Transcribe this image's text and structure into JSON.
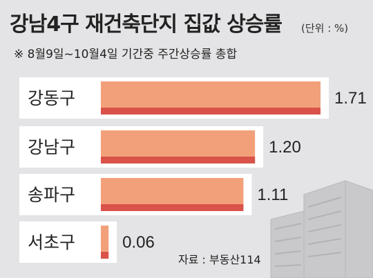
{
  "header": {
    "title": "강남4구 재건축단지 집값 상승률",
    "unit": "(단위 : %)",
    "subtitle": "※ 8월9일~10월4일 기간중 주간상승률 총합"
  },
  "source": "자료 : 부동산114",
  "colors": {
    "bar": "#f2a07a",
    "bar_shadow": "#d9534a",
    "label_box": "#ffffff",
    "background": "#e4e4e6",
    "building": "#c9c9cc"
  },
  "chart_data": {
    "type": "bar",
    "orientation": "horizontal",
    "categories": [
      "강동구",
      "강남구",
      "송파구",
      "서초구"
    ],
    "values": [
      1.71,
      1.2,
      1.11,
      0.06
    ],
    "value_labels": [
      "1.71",
      "1.20",
      "1.11",
      "0.06"
    ],
    "xlim": [
      0,
      1.71
    ],
    "grid": false,
    "legend": "none"
  }
}
